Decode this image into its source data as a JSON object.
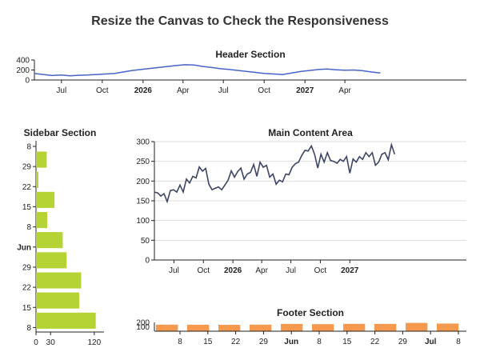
{
  "page": {
    "title": "Resize the Canvas to Check the Responsiveness"
  },
  "chart_data": [
    {
      "id": "header",
      "type": "line",
      "title": "Header Section",
      "x_range": [
        "2025-05-01",
        "2027-12-31"
      ],
      "ylim": [
        0,
        400
      ],
      "y_ticks": [
        "0",
        "200",
        "400"
      ],
      "x_ticks": [
        {
          "date": "2025-07-01",
          "label": "Jul",
          "bold": false
        },
        {
          "date": "2025-10-01",
          "label": "Oct",
          "bold": false
        },
        {
          "date": "2026-01-01",
          "label": "2026",
          "bold": true
        },
        {
          "date": "2026-04-01",
          "label": "Apr",
          "bold": false
        },
        {
          "date": "2026-07-01",
          "label": "Jul",
          "bold": false
        },
        {
          "date": "2026-10-01",
          "label": "Oct",
          "bold": false
        },
        {
          "date": "2027-01-01",
          "label": "2027",
          "bold": true
        },
        {
          "date": "2027-04-01",
          "label": "Apr",
          "bold": false
        }
      ],
      "color": "#4863c8",
      "series": [
        {
          "points": [
            [
              "2025-05-01",
              130
            ],
            [
              "2025-05-21",
              110
            ],
            [
              "2025-06-10",
              90
            ],
            [
              "2025-06-30",
              100
            ],
            [
              "2025-07-20",
              85
            ],
            [
              "2025-08-09",
              95
            ],
            [
              "2025-08-29",
              100
            ],
            [
              "2025-09-18",
              110
            ],
            [
              "2025-10-08",
              120
            ],
            [
              "2025-10-28",
              130
            ],
            [
              "2025-11-17",
              160
            ],
            [
              "2025-12-07",
              190
            ],
            [
              "2025-12-27",
              210
            ],
            [
              "2026-01-16",
              230
            ],
            [
              "2026-02-05",
              250
            ],
            [
              "2026-02-25",
              270
            ],
            [
              "2026-03-17",
              290
            ],
            [
              "2026-04-06",
              305
            ],
            [
              "2026-04-26",
              300
            ],
            [
              "2026-05-16",
              270
            ],
            [
              "2026-06-05",
              250
            ],
            [
              "2026-06-25",
              225
            ],
            [
              "2026-07-15",
              210
            ],
            [
              "2026-08-04",
              190
            ],
            [
              "2026-08-24",
              170
            ],
            [
              "2026-09-13",
              150
            ],
            [
              "2026-10-03",
              130
            ],
            [
              "2026-10-23",
              120
            ],
            [
              "2026-11-12",
              110
            ],
            [
              "2026-12-02",
              140
            ],
            [
              "2026-12-22",
              170
            ],
            [
              "2027-01-11",
              190
            ],
            [
              "2027-01-31",
              210
            ],
            [
              "2027-02-20",
              220
            ],
            [
              "2027-03-12",
              205
            ],
            [
              "2027-04-01",
              195
            ],
            [
              "2027-04-21",
              200
            ],
            [
              "2027-05-11",
              185
            ],
            [
              "2027-05-31",
              160
            ],
            [
              "2027-06-20",
              140
            ]
          ]
        }
      ]
    },
    {
      "id": "sidebar",
      "type": "bar",
      "orientation": "horizontal",
      "title": "Sidebar Section",
      "xlim": [
        0,
        140
      ],
      "x_ticks": [
        "0",
        "30",
        "120"
      ],
      "y_ticks": [
        {
          "label": "8",
          "bold": false
        },
        {
          "label": "29",
          "bold": false
        },
        {
          "label": "22",
          "bold": false
        },
        {
          "label": "15",
          "bold": false
        },
        {
          "label": "8",
          "bold": false
        },
        {
          "label": "Jun",
          "bold": true
        },
        {
          "label": "29",
          "bold": false
        },
        {
          "label": "22",
          "bold": false
        },
        {
          "label": "15",
          "bold": false
        },
        {
          "label": "8",
          "bold": false
        }
      ],
      "color": "#b5d334",
      "values": [
        22,
        5,
        38,
        23,
        55,
        63,
        93,
        89,
        123
      ]
    },
    {
      "id": "main",
      "type": "line",
      "title": "Main Content Area",
      "x_range": [
        "2025-05-01",
        "2027-12-31"
      ],
      "ylim": [
        0,
        300
      ],
      "y_ticks": [
        "0",
        "50",
        "100",
        "150",
        "200",
        "250",
        "300"
      ],
      "x_ticks": [
        {
          "date": "2025-07-01",
          "label": "Jul",
          "bold": false
        },
        {
          "date": "2025-10-01",
          "label": "Oct",
          "bold": false
        },
        {
          "date": "2026-01-01",
          "label": "2026",
          "bold": true
        },
        {
          "date": "2026-04-01",
          "label": "Apr",
          "bold": false
        },
        {
          "date": "2026-07-01",
          "label": "Jul",
          "bold": false
        },
        {
          "date": "2026-10-01",
          "label": "Oct",
          "bold": false
        },
        {
          "date": "2027-01-01",
          "label": "2027",
          "bold": true
        }
      ],
      "color": "#3d4563",
      "series": [
        {
          "points": [
            [
              "2025-05-01",
              172
            ],
            [
              "2025-05-11",
              170
            ],
            [
              "2025-05-21",
              162
            ],
            [
              "2025-05-31",
              168
            ],
            [
              "2025-06-10",
              148
            ],
            [
              "2025-06-20",
              176
            ],
            [
              "2025-06-30",
              178
            ],
            [
              "2025-07-10",
              172
            ],
            [
              "2025-07-20",
              190
            ],
            [
              "2025-07-30",
              172
            ],
            [
              "2025-08-09",
              205
            ],
            [
              "2025-08-19",
              195
            ],
            [
              "2025-08-29",
              212
            ],
            [
              "2025-09-08",
              208
            ],
            [
              "2025-09-18",
              236
            ],
            [
              "2025-09-28",
              225
            ],
            [
              "2025-10-08",
              232
            ],
            [
              "2025-10-18",
              192
            ],
            [
              "2025-10-28",
              178
            ],
            [
              "2025-11-07",
              182
            ],
            [
              "2025-11-17",
              185
            ],
            [
              "2025-11-27",
              178
            ],
            [
              "2025-12-07",
              190
            ],
            [
              "2025-12-17",
              202
            ],
            [
              "2025-12-27",
              226
            ],
            [
              "2026-01-06",
              210
            ],
            [
              "2026-01-16",
              224
            ],
            [
              "2026-01-26",
              233
            ],
            [
              "2026-02-05",
              205
            ],
            [
              "2026-02-15",
              218
            ],
            [
              "2026-02-25",
              222
            ],
            [
              "2026-03-07",
              242
            ],
            [
              "2026-03-17",
              212
            ],
            [
              "2026-03-27",
              248
            ],
            [
              "2026-04-06",
              235
            ],
            [
              "2026-04-16",
              240
            ],
            [
              "2026-04-26",
              210
            ],
            [
              "2026-05-06",
              218
            ],
            [
              "2026-05-16",
              192
            ],
            [
              "2026-05-26",
              202
            ],
            [
              "2026-06-05",
              198
            ],
            [
              "2026-06-15",
              218
            ],
            [
              "2026-06-25",
              216
            ],
            [
              "2026-07-05",
              235
            ],
            [
              "2026-07-15",
              244
            ],
            [
              "2026-07-25",
              248
            ],
            [
              "2026-08-04",
              265
            ],
            [
              "2026-08-14",
              278
            ],
            [
              "2026-08-24",
              276
            ],
            [
              "2026-09-03",
              289
            ],
            [
              "2026-09-13",
              268
            ],
            [
              "2026-09-23",
              233
            ],
            [
              "2026-10-03",
              268
            ],
            [
              "2026-10-13",
              248
            ],
            [
              "2026-10-23",
              272
            ],
            [
              "2026-11-02",
              252
            ],
            [
              "2026-11-12",
              250
            ],
            [
              "2026-11-22",
              245
            ],
            [
              "2026-12-02",
              255
            ],
            [
              "2026-12-12",
              250
            ],
            [
              "2026-12-22",
              262
            ],
            [
              "2027-01-01",
              220
            ],
            [
              "2027-01-11",
              256
            ],
            [
              "2027-01-21",
              248
            ],
            [
              "2027-01-31",
              262
            ],
            [
              "2027-02-10",
              255
            ],
            [
              "2027-02-20",
              272
            ],
            [
              "2027-03-02",
              262
            ],
            [
              "2027-03-12",
              272
            ],
            [
              "2027-03-22",
              240
            ],
            [
              "2027-04-01",
              248
            ],
            [
              "2027-04-11",
              268
            ],
            [
              "2027-04-21",
              272
            ],
            [
              "2027-05-01",
              254
            ],
            [
              "2027-05-11",
              292
            ],
            [
              "2027-05-21",
              268
            ]
          ]
        }
      ]
    },
    {
      "id": "footer",
      "type": "bar",
      "title": "Footer Section",
      "ylim": [
        0,
        200
      ],
      "y_ticks": [
        "100",
        "200"
      ],
      "x_ticks": [
        {
          "label": "8",
          "bold": false
        },
        {
          "label": "15",
          "bold": false
        },
        {
          "label": "22",
          "bold": false
        },
        {
          "label": "29",
          "bold": false
        },
        {
          "label": "Jun",
          "bold": true
        },
        {
          "label": "8",
          "bold": false
        },
        {
          "label": "15",
          "bold": false
        },
        {
          "label": "22",
          "bold": false
        },
        {
          "label": "29",
          "bold": false
        },
        {
          "label": "Jul",
          "bold": true
        },
        {
          "label": "8",
          "bold": false
        }
      ],
      "color": "#f5994e",
      "values": [
        150,
        148,
        145,
        150,
        165,
        160,
        168,
        165,
        190,
        175
      ]
    }
  ]
}
